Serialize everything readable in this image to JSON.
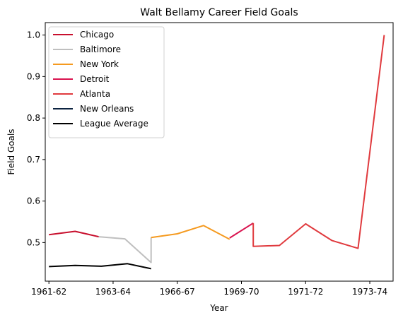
{
  "chart_data": {
    "type": "line",
    "title": "Walt Bellamy Career Field Goals",
    "xlabel": "Year",
    "ylabel": "Field Goals",
    "xlim": [
      -0.14,
      13.14
    ],
    "ylim": [
      0.407,
      1.03
    ],
    "x_tick_labels": [
      {
        "pos": 0,
        "label": "1961-62"
      },
      {
        "pos": 2.45,
        "label": "1963-64"
      },
      {
        "pos": 4.9,
        "label": "1966-67"
      },
      {
        "pos": 7.35,
        "label": "1969-70"
      },
      {
        "pos": 9.8,
        "label": "1971-72"
      },
      {
        "pos": 12.25,
        "label": "1973-74"
      }
    ],
    "y_ticks": [
      0.5,
      0.6,
      0.7,
      0.8,
      0.9,
      1.0
    ],
    "y_tick_labels": [
      "0.5",
      "0.6",
      "0.7",
      "0.8",
      "0.9",
      "1.0"
    ],
    "legend_position": "upper-left",
    "series": [
      {
        "name": "Chicago",
        "color": "#c8102e",
        "points": [
          [
            0,
            0.519
          ],
          [
            1,
            0.527
          ],
          [
            1.9,
            0.514
          ]
        ]
      },
      {
        "name": "Baltimore",
        "color": "#bfbfbf",
        "points": [
          [
            1.9,
            0.514
          ],
          [
            2.9,
            0.509
          ],
          [
            3.9,
            0.452
          ],
          [
            3.9,
            0.512
          ]
        ]
      },
      {
        "name": "New York",
        "color": "#f59a1f",
        "points": [
          [
            3.9,
            0.512
          ],
          [
            4.9,
            0.521
          ],
          [
            5.9,
            0.541
          ],
          [
            6.9,
            0.508
          ]
        ]
      },
      {
        "name": "Detroit",
        "color": "#d9134f",
        "points": [
          [
            6.9,
            0.511
          ],
          [
            7.8,
            0.547
          ]
        ]
      },
      {
        "name": "Atlanta",
        "color": "#e03a3e",
        "points": [
          [
            7.8,
            0.547
          ],
          [
            7.8,
            0.491
          ],
          [
            8.8,
            0.493
          ],
          [
            9.8,
            0.545
          ],
          [
            10.8,
            0.505
          ],
          [
            11.8,
            0.486
          ],
          [
            12.8,
            1.0
          ]
        ]
      },
      {
        "name": "New Orleans",
        "color": "#0c2340",
        "points": [
          [
            12.8,
            1.0
          ]
        ]
      },
      {
        "name": "League Average",
        "color": "#000000",
        "points": [
          [
            0,
            0.442
          ],
          [
            1,
            0.445
          ],
          [
            2,
            0.443
          ],
          [
            3,
            0.449
          ],
          [
            3.9,
            0.437
          ]
        ]
      }
    ]
  }
}
